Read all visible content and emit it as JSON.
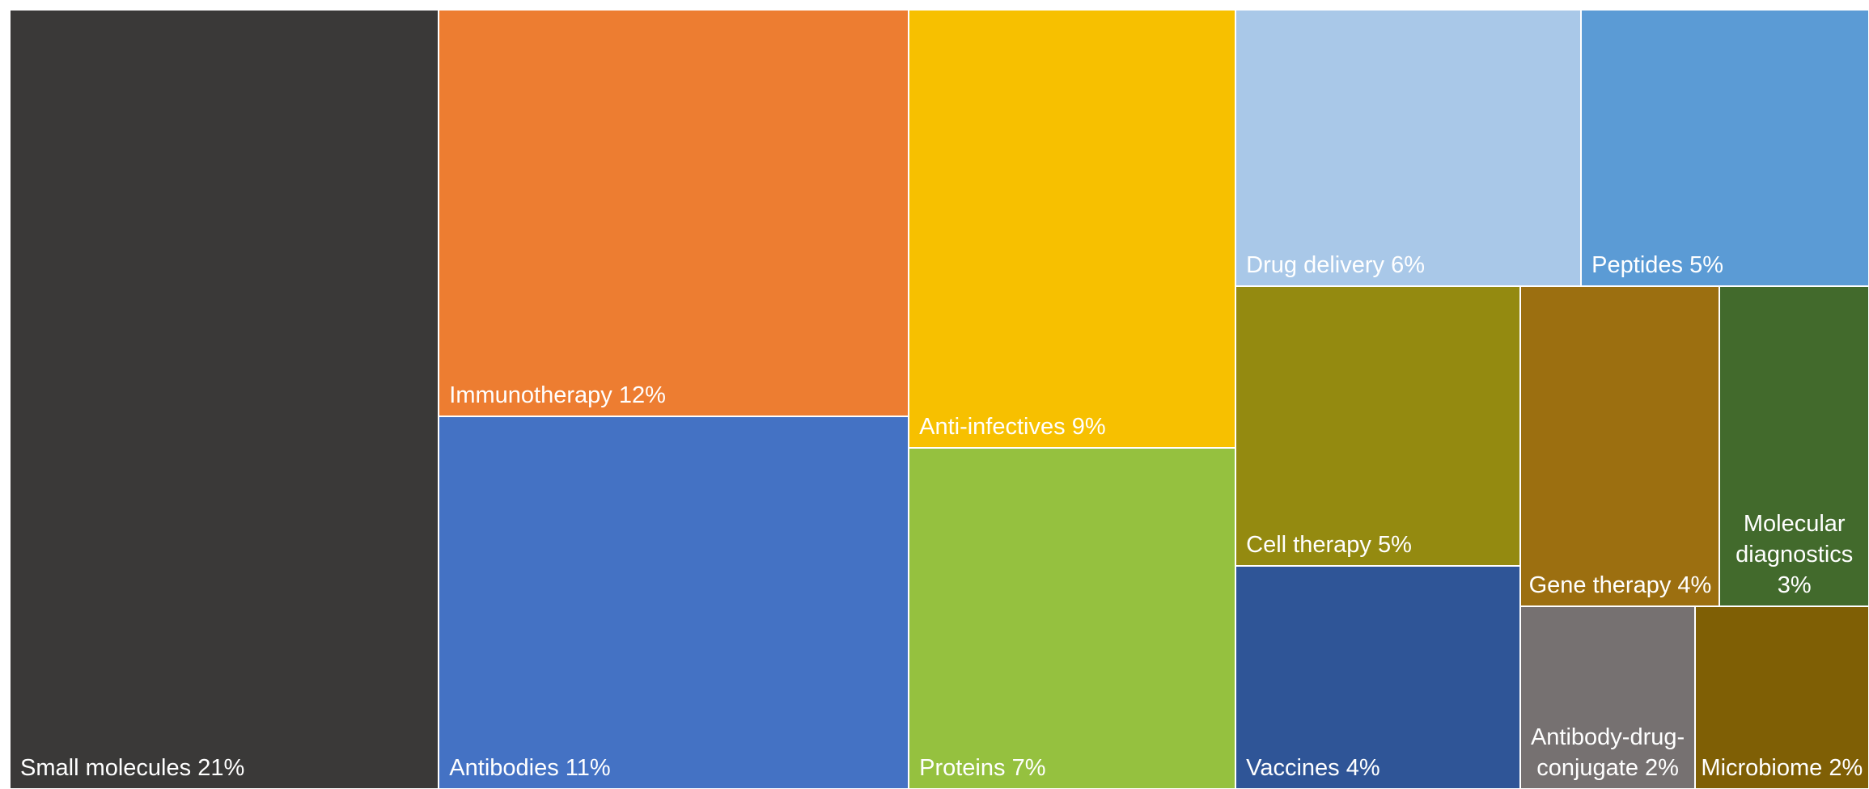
{
  "chart_data": {
    "type": "treemap",
    "categories": [
      "Small molecules",
      "Immunotherapy",
      "Antibodies",
      "Anti-infectives",
      "Proteins",
      "Drug delivery",
      "Peptides",
      "Cell therapy",
      "Vaccines",
      "Gene therapy",
      "Molecular diagnostics",
      "Antibody-drug-conjugate",
      "Microbiome"
    ],
    "values": [
      21,
      12,
      11,
      9,
      7,
      6,
      5,
      5,
      4,
      4,
      3,
      2,
      2
    ],
    "value_labels": [
      "21%",
      "12%",
      "11%",
      "9%",
      "7%",
      "6%",
      "5%",
      "5%",
      "4%",
      "4%",
      "3%",
      "2%",
      "2%"
    ],
    "colors": [
      "#3a3938",
      "#ed7d31",
      "#4472c4",
      "#f7c000",
      "#95c13f",
      "#a9c8e8",
      "#5b9bd5",
      "#948a10",
      "#2f5597",
      "#9c6f10",
      "#426a2c",
      "#767171",
      "#7f5f05"
    ]
  }
}
